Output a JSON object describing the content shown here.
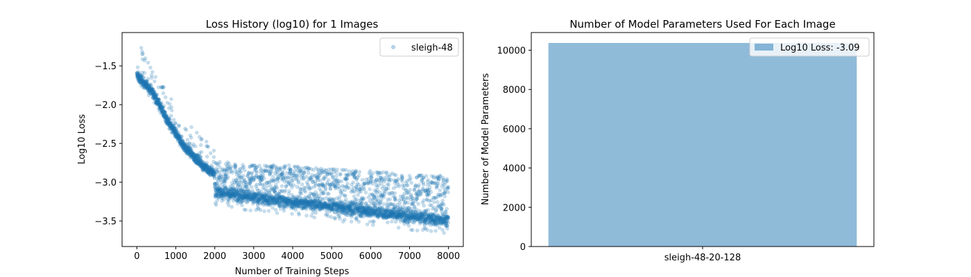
{
  "chart_data": [
    {
      "type": "scatter",
      "title": "Loss History (log10) for 1 Images",
      "xlabel": "Number of Training Steps",
      "ylabel": "Log10 Loss",
      "xlim": [
        -380,
        8380
      ],
      "ylim": [
        -3.83,
        -1.07
      ],
      "xticks": [
        0,
        1000,
        2000,
        3000,
        4000,
        5000,
        6000,
        7000,
        8000
      ],
      "xtick_labels": [
        "0",
        "1000",
        "2000",
        "3000",
        "4000",
        "5000",
        "6000",
        "7000",
        "8000"
      ],
      "yticks": [
        -3.5,
        -3.0,
        -2.5,
        -2.0,
        -1.5
      ],
      "ytick_labels": [
        "−3.5",
        "−3.0",
        "−2.5",
        "−2.0",
        "−1.5"
      ],
      "legend_position": "upper right",
      "series": [
        {
          "name": "sleigh-48",
          "color": "#1f77b4",
          "alpha": 0.25,
          "n_points": 8000,
          "trend": {
            "x": [
              0,
              100,
              200,
              300,
              400,
              600,
              800,
              1000,
              1200,
              1400,
              1600,
              1800,
              1990,
              2010,
              2500,
              3000,
              4000,
              5000,
              6000,
              7000,
              8000
            ],
            "y": [
              -1.62,
              -1.68,
              -1.73,
              -1.78,
              -1.84,
              -2.02,
              -2.22,
              -2.38,
              -2.53,
              -2.64,
              -2.74,
              -2.83,
              -2.88,
              -3.13,
              -3.16,
              -3.2,
              -3.26,
              -3.31,
              -3.38,
              -3.44,
              -3.5
            ]
          },
          "upper_envelope": {
            "x": [
              0,
              500,
              1000,
              1500,
              1990,
              2010,
              3000,
              4000,
              5000,
              6000,
              7000,
              8000
            ],
            "y": [
              -1.2,
              -1.65,
              -2.05,
              -2.35,
              -2.62,
              -2.72,
              -2.78,
              -2.78,
              -2.83,
              -2.85,
              -2.9,
              -2.92
            ]
          }
        }
      ]
    },
    {
      "type": "bar",
      "title": "Number of Model Parameters Used For Each Image",
      "xlabel": "",
      "ylabel": "Number of Model Parameters",
      "categories": [
        "sleigh-48-20-128"
      ],
      "values": [
        10369
      ],
      "ylim": [
        0,
        10900
      ],
      "yticks": [
        0,
        2000,
        4000,
        6000,
        8000,
        10000
      ],
      "ytick_labels": [
        "0",
        "2000",
        "4000",
        "6000",
        "8000",
        "10000"
      ],
      "color": "#1f77b4",
      "alpha": 0.5,
      "legend_position": "upper right",
      "series": [
        {
          "name": "Log10 Loss: -3.09",
          "values": [
            10369
          ]
        }
      ]
    }
  ]
}
